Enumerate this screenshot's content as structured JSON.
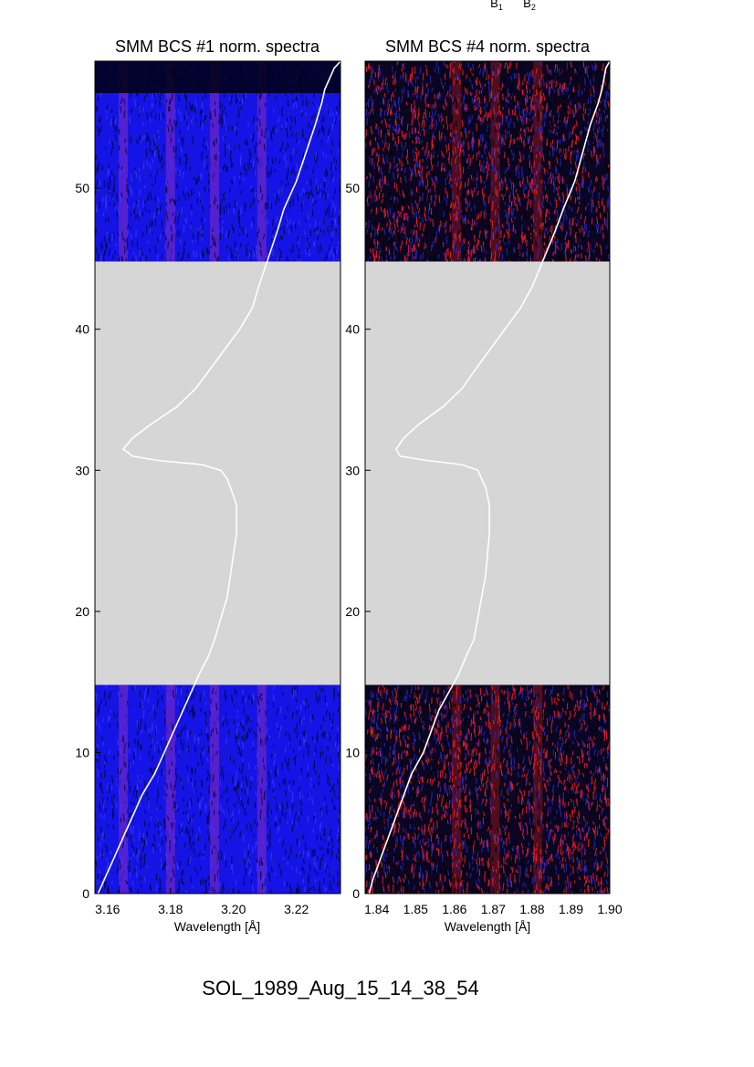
{
  "header_labels": [
    "B1",
    "B2"
  ],
  "footer_label": "SOL_1989_Aug_15_14_38_54",
  "colors": {
    "gap": "#d6d6d6",
    "curve": "#ffffff",
    "spec1_base": "#1414e6",
    "spec4_red": "#ff2020",
    "spec4_blue": "#2a2ad0"
  },
  "chart_data": [
    {
      "type": "heatmap",
      "title": "SMM BCS #1 norm. spectra",
      "xlabel": "Wavelength [Å]",
      "ylabel": "",
      "xlim": [
        3.156,
        3.234
      ],
      "ylim": [
        0,
        59
      ],
      "xticks": [
        3.16,
        3.18,
        3.2,
        3.22
      ],
      "xtick_labels": [
        "3.16",
        "3.18",
        "3.20",
        "3.22"
      ],
      "yticks": [
        0,
        10,
        20,
        30,
        40,
        50
      ],
      "ytick_labels": [
        "0",
        "10",
        "20",
        "30",
        "40",
        "50"
      ],
      "data_gap": [
        14.8,
        44.8
      ],
      "emission_lines": [
        3.165,
        3.18,
        3.194,
        3.209
      ],
      "curve_x": [
        3.157,
        3.159,
        3.162,
        3.165,
        3.168,
        3.171,
        3.175,
        3.178,
        3.181,
        3.184,
        3.187,
        3.189,
        3.192,
        3.194,
        3.196,
        3.198,
        3.199,
        3.2,
        3.201,
        3.201,
        3.201,
        3.2,
        3.199,
        3.198,
        3.196,
        3.19,
        3.176,
        3.168,
        3.165,
        3.168,
        3.174,
        3.182,
        3.188,
        3.192,
        3.197,
        3.202,
        3.206,
        3.208,
        3.211,
        3.214,
        3.216,
        3.22,
        3.223,
        3.226,
        3.228,
        3.229,
        3.232,
        3.234
      ],
      "curve_y": [
        0,
        1,
        2.5,
        4,
        5.5,
        7,
        8.5,
        10,
        11.5,
        13,
        14.5,
        15.5,
        16.8,
        18,
        19.5,
        21,
        22.5,
        24,
        25.5,
        26.5,
        27.5,
        28.2,
        28.8,
        29.4,
        30.0,
        30.4,
        30.7,
        31.0,
        31.5,
        32.3,
        33.3,
        34.5,
        35.8,
        37,
        38.5,
        40,
        41.5,
        43,
        45,
        47,
        48.5,
        50.5,
        52.5,
        54.5,
        56,
        57,
        58.5,
        59
      ]
    },
    {
      "type": "heatmap",
      "title": "SMM BCS #4 norm. spectra",
      "xlabel": "Wavelength [Å]",
      "ylabel": "",
      "xlim": [
        1.837,
        1.9
      ],
      "ylim": [
        0,
        59
      ],
      "xticks": [
        1.84,
        1.85,
        1.86,
        1.87,
        1.88,
        1.89,
        1.9
      ],
      "xtick_labels": [
        "1.84",
        "1.85",
        "1.86",
        "1.87",
        "1.88",
        "1.89",
        "1.90"
      ],
      "yticks": [
        0,
        10,
        20,
        30,
        40,
        50
      ],
      "ytick_labels": [
        "0",
        "10",
        "20",
        "30",
        "40",
        "50"
      ],
      "data_gap": [
        14.8,
        44.8
      ],
      "emission_lines": [
        1.8605,
        1.8705,
        1.8815
      ],
      "curve_x": [
        1.838,
        1.839,
        1.841,
        1.843,
        1.845,
        1.847,
        1.849,
        1.852,
        1.854,
        1.856,
        1.859,
        1.861,
        1.863,
        1.865,
        1.866,
        1.867,
        1.868,
        1.8685,
        1.869,
        1.869,
        1.869,
        1.8685,
        1.868,
        1.867,
        1.866,
        1.862,
        1.853,
        1.846,
        1.845,
        1.847,
        1.851,
        1.857,
        1.862,
        1.865,
        1.869,
        1.873,
        1.877,
        1.88,
        1.883,
        1.886,
        1.888,
        1.891,
        1.893,
        1.895,
        1.897,
        1.898,
        1.899,
        1.9
      ],
      "curve_y": [
        0,
        1,
        2.5,
        4,
        5.5,
        7,
        8.5,
        10,
        11.5,
        13,
        14.5,
        15.5,
        16.8,
        18,
        19.5,
        21,
        22.5,
        24,
        25.5,
        26.5,
        27.5,
        28.2,
        28.8,
        29.4,
        30.0,
        30.4,
        30.7,
        31.0,
        31.5,
        32.3,
        33.3,
        34.5,
        35.8,
        37,
        38.5,
        40,
        41.5,
        43,
        45,
        47,
        48.5,
        50.5,
        52.5,
        54.5,
        56,
        57,
        58.5,
        59
      ]
    }
  ]
}
